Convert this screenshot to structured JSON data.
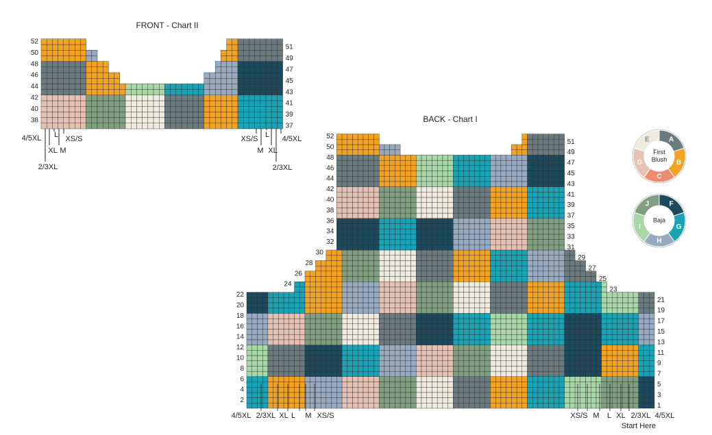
{
  "front": {
    "title": "FRONT - Chart II",
    "left_rows": [
      52,
      50,
      48,
      46,
      44,
      42,
      40,
      38
    ],
    "right_rows": [
      51,
      49,
      47,
      45,
      43,
      41,
      39,
      37
    ],
    "left_sizes": [
      {
        "text": "4/5XL",
        "color": "#e58fb4"
      },
      {
        "text": "L",
        "color": "#f2a32c"
      },
      {
        "text": "XS/S",
        "color": "#a3226d"
      },
      {
        "text": "XL",
        "color": "#1a9fc7"
      },
      {
        "text": "M",
        "color": "#f2a32c"
      },
      {
        "text": "2/3XL",
        "color": "#9a3c8d"
      }
    ],
    "right_sizes": [
      {
        "text": "XS/S",
        "color": "#a3226d"
      },
      {
        "text": "L",
        "color": "#f2a32c"
      },
      {
        "text": "4/5XL",
        "color": "#e58fb4"
      },
      {
        "text": "M",
        "color": "#f2a32c"
      },
      {
        "text": "XL",
        "color": "#1a9fc7"
      },
      {
        "text": "2/3XL",
        "color": "#9a3c8d"
      }
    ]
  },
  "back": {
    "title": "BACK - Chart I",
    "left_rows": [
      52,
      50,
      48,
      46,
      44,
      42,
      40,
      38,
      36,
      34,
      32,
      30,
      28,
      26,
      24,
      22,
      20,
      18,
      16,
      14,
      12,
      10,
      8,
      6,
      4,
      2
    ],
    "right_rows": [
      51,
      49,
      47,
      45,
      43,
      41,
      39,
      37,
      35,
      33,
      31,
      29,
      27,
      25,
      23,
      21,
      19,
      17,
      15,
      13,
      11,
      9,
      7,
      5,
      3,
      1
    ],
    "left_sizes": [
      {
        "text": "4/5XL",
        "color": "#e58fb4"
      },
      {
        "text": "2/3XL",
        "color": "#9a3c8d"
      },
      {
        "text": "XL",
        "color": "#1a9fc7"
      },
      {
        "text": "L",
        "color": "#f2a32c"
      },
      {
        "text": "M",
        "color": "#f2a32c"
      },
      {
        "text": "XS/S",
        "color": "#a3226d"
      }
    ],
    "right_sizes": [
      {
        "text": "XS/S",
        "color": "#a3226d"
      },
      {
        "text": "M",
        "color": "#f2a32c"
      },
      {
        "text": "L",
        "color": "#f2a32c"
      },
      {
        "text": "XL",
        "color": "#1a9fc7"
      },
      {
        "text": "2/3XL",
        "color": "#9a3c8d"
      },
      {
        "text": "4/5XL",
        "color": "#e58fb4"
      }
    ],
    "start": "Start Here"
  },
  "legends": [
    {
      "name": [
        "First",
        "Blush"
      ],
      "colors": [
        {
          "letter": "A",
          "color": "#6a7a7f"
        },
        {
          "letter": "B",
          "color": "#f3a324"
        },
        {
          "letter": "C",
          "color": "#ea8c6f"
        },
        {
          "letter": "D",
          "color": "#e6c2b5"
        },
        {
          "letter": "E",
          "color": "#efebde"
        }
      ]
    },
    {
      "name": [
        "Baja"
      ],
      "colors": [
        {
          "letter": "F",
          "color": "#1c4a5c"
        },
        {
          "letter": "G",
          "color": "#19a3b5"
        },
        {
          "letter": "H",
          "color": "#98aabf"
        },
        {
          "letter": "I",
          "color": "#a8d8a7"
        },
        {
          "letter": "J",
          "color": "#7f9f80"
        }
      ]
    }
  ]
}
